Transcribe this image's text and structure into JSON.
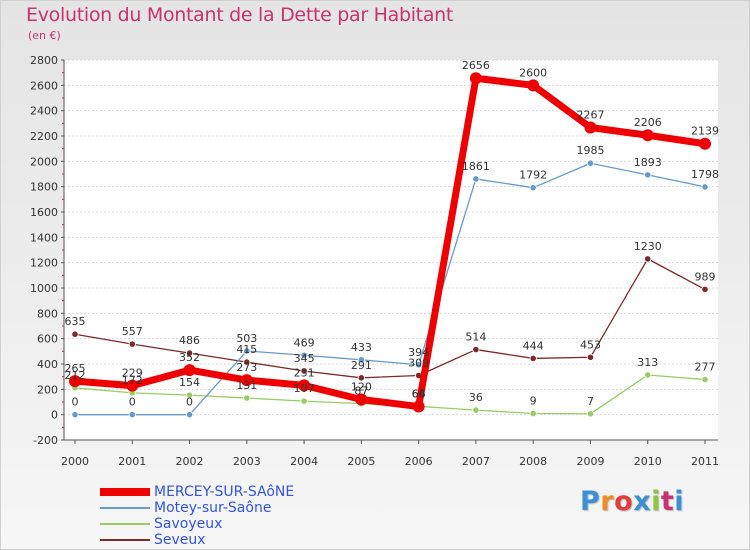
{
  "header": {
    "title": "Evolution du Montant de la Dette par Habitant",
    "subtitle": "(en €)"
  },
  "logo": {
    "text": "Proxiti",
    "letter_colors": [
      "#3a8fd6",
      "#f08a24",
      "#e23c3c",
      "#3a8fd6",
      "#8cc63f",
      "#c8326e",
      "#3a8fd6"
    ]
  },
  "chart_data": {
    "type": "line",
    "title": "Evolution du Montant de la Dette par Habitant",
    "subtitle": "(en €)",
    "xlabel": "",
    "ylabel": "",
    "x": [
      "2000",
      "2001",
      "2002",
      "2003",
      "2004",
      "2005",
      "2006",
      "2007",
      "2008",
      "2009",
      "2010",
      "2011"
    ],
    "ylim": [
      -200,
      2800
    ],
    "yticks": [
      -200,
      0,
      200,
      400,
      600,
      800,
      1000,
      1200,
      1400,
      1600,
      1800,
      2000,
      2200,
      2400,
      2600,
      2800
    ],
    "grid": true,
    "legend_position": "bottom-left",
    "series": [
      {
        "name": "MERCEY-SUR-SAôNE",
        "color": "#ee0000",
        "values": [
          265,
          229,
          352,
          273,
          231,
          120,
          64,
          2656,
          2600,
          2267,
          2206,
          2139
        ],
        "labels": [
          "265",
          "229",
          "352",
          "273",
          "231",
          "120",
          "64",
          "2656",
          "2600",
          "2267",
          "2206",
          "2139"
        ]
      },
      {
        "name": "Motey-sur-Saône",
        "color": "#6699cc",
        "values": [
          0,
          0,
          0,
          503,
          469,
          433,
          394,
          1861,
          1792,
          1985,
          1893,
          1798
        ],
        "labels": [
          "0",
          "0",
          "0",
          "503",
          "469",
          "433",
          "394",
          "1861",
          "1792",
          "1985",
          "1893",
          "1798"
        ]
      },
      {
        "name": "Savoyeux",
        "color": "#99cc66",
        "values": [
          212,
          172,
          154,
          131,
          107,
          87,
          66,
          36,
          9,
          7,
          313,
          277
        ],
        "labels": [
          "212",
          "172",
          "154",
          "131",
          "107",
          "87",
          "66",
          "36",
          "9",
          "7",
          "313",
          "277"
        ]
      },
      {
        "name": "Seveux",
        "color": "#7a2a2a",
        "values": [
          635,
          557,
          486,
          415,
          345,
          291,
          309,
          514,
          444,
          453,
          1230,
          989
        ],
        "labels": [
          "635",
          "557",
          "486",
          "415",
          "345",
          "291",
          "309",
          "514",
          "444",
          "453",
          "1230",
          "989"
        ]
      }
    ]
  }
}
